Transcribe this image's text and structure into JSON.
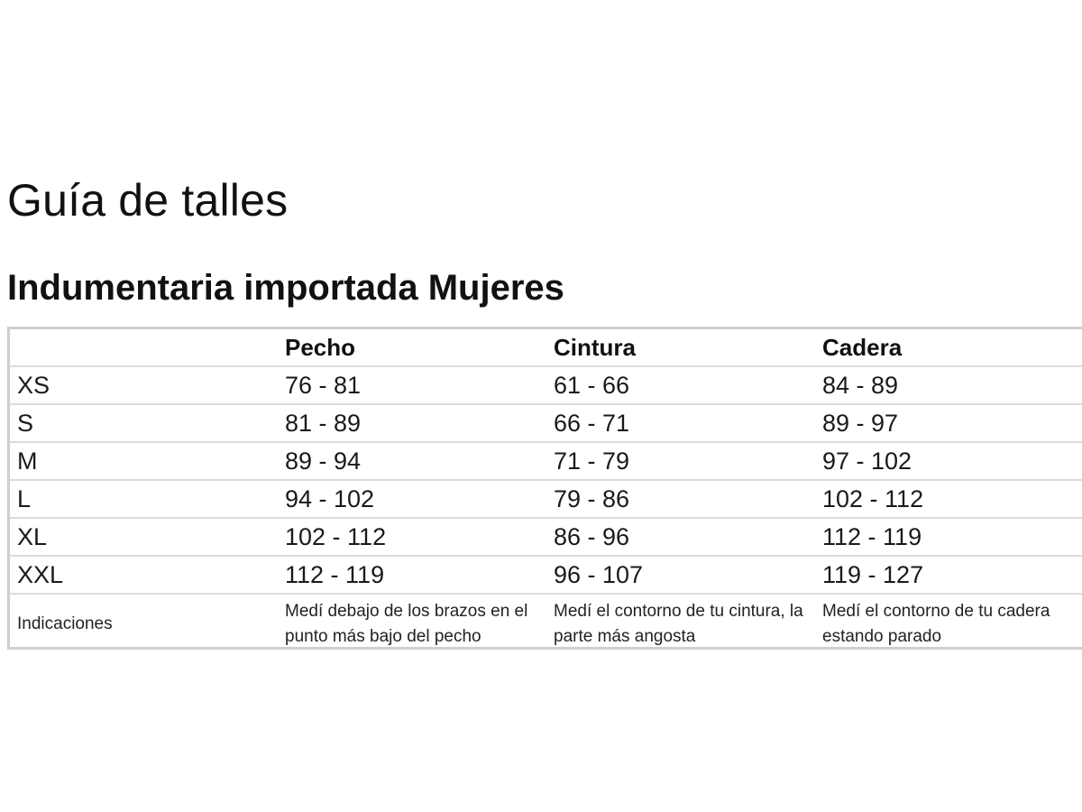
{
  "page": {
    "title": "Guía de talles",
    "section_title": "Indumentaria importada Mujeres"
  },
  "table": {
    "headers": [
      "",
      "Pecho",
      "Cintura",
      "Cadera"
    ],
    "rows": [
      {
        "size": "XS",
        "pecho": "76 - 81",
        "cintura": "61 - 66",
        "cadera": "84 - 89"
      },
      {
        "size": "S",
        "pecho": "81 - 89",
        "cintura": "66 - 71",
        "cadera": "89 - 97"
      },
      {
        "size": "M",
        "pecho": "89 - 94",
        "cintura": "71 - 79",
        "cadera": "97 - 102"
      },
      {
        "size": "L",
        "pecho": "94 - 102",
        "cintura": "79 - 86",
        "cadera": "102 - 112"
      },
      {
        "size": "XL",
        "pecho": "102 - 112",
        "cintura": "86 - 96",
        "cadera": "112 - 119"
      },
      {
        "size": "XXL",
        "pecho": "112 - 119",
        "cintura": "96 - 107",
        "cadera": "119 - 127"
      }
    ],
    "indications": {
      "label": "Indicaciones",
      "pecho": "Medí debajo de los brazos en el punto más bajo del pecho",
      "cintura": "Medí el contorno de tu cintura, la parte más angosta",
      "cadera": "Medí el contorno de tu cadera estando parado"
    }
  }
}
